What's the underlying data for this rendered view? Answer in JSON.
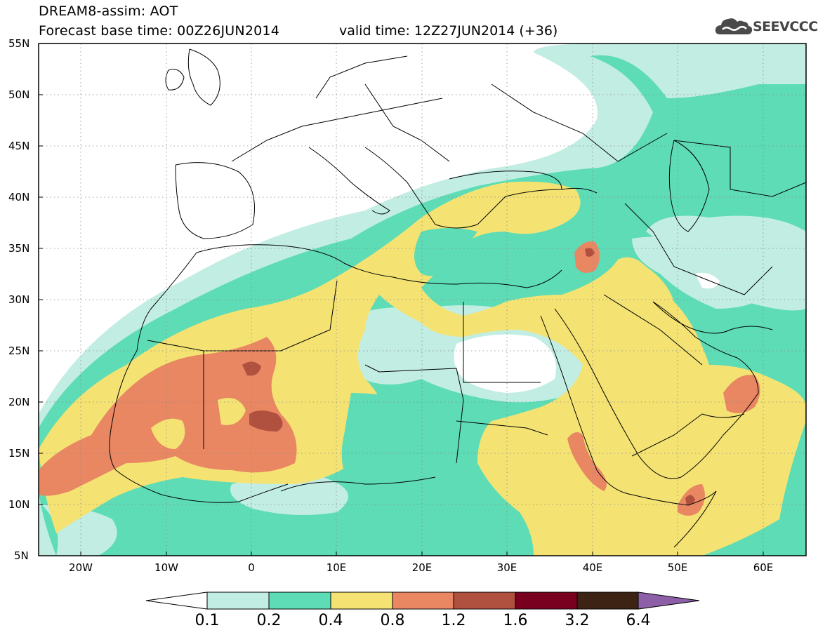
{
  "header": {
    "title_line1": "DREAM8-assim: AOT",
    "title_line2": "Forecast base time: 00Z26JUN2014",
    "valid_time": "valid time: 12Z27JUN2014 (+36)",
    "logo_text": "SEEVCCC"
  },
  "map": {
    "lat_labels": [
      "55N",
      "50N",
      "45N",
      "40N",
      "35N",
      "30N",
      "25N",
      "20N",
      "15N",
      "10N",
      "5N"
    ],
    "lon_labels": [
      "20W",
      "10W",
      "0",
      "10E",
      "20E",
      "30E",
      "40E",
      "50E",
      "60E"
    ],
    "lat_range": [
      5,
      55
    ],
    "lon_range": [
      -25,
      65
    ]
  },
  "colorbar": {
    "labels": [
      "0.1",
      "0.2",
      "0.4",
      "0.8",
      "1.2",
      "1.6",
      "3.2",
      "6.4"
    ],
    "colors": [
      "#ffffff",
      "#c2ede3",
      "#5ddcb6",
      "#f4e373",
      "#e98763",
      "#b0503f",
      "#7a0020",
      "#3d2314",
      "#8c5fa7"
    ]
  },
  "colors": {
    "none": "#ffffff",
    "aot_0_1": "#c2ede3",
    "aot_0_2": "#5ddcb6",
    "aot_0_4": "#f4e373",
    "aot_0_8": "#e98763",
    "aot_1_2": "#b0503f"
  }
}
